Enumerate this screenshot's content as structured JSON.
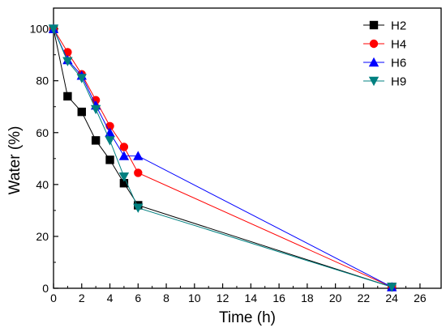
{
  "chart_data": {
    "type": "line",
    "xlabel": "Time (h)",
    "ylabel": "Water (%)",
    "xlim": [
      0,
      27.5
    ],
    "ylim": [
      0,
      108
    ],
    "xticks": [
      0,
      2,
      4,
      6,
      8,
      10,
      12,
      14,
      16,
      18,
      20,
      22,
      24,
      26
    ],
    "yticks": [
      0,
      20,
      40,
      60,
      80,
      100
    ],
    "legend_position": "top-right",
    "grid": false,
    "series": [
      {
        "name": "H2",
        "color": "#000000",
        "marker": "square",
        "points": [
          [
            0,
            100
          ],
          [
            1,
            74
          ],
          [
            2,
            68
          ],
          [
            3,
            57
          ],
          [
            4,
            49.5
          ],
          [
            5,
            40.5
          ],
          [
            6,
            32
          ],
          [
            24,
            0.5
          ]
        ]
      },
      {
        "name": "H4",
        "color": "#ff0000",
        "marker": "circle",
        "points": [
          [
            0,
            100
          ],
          [
            1,
            91
          ],
          [
            2,
            82.5
          ],
          [
            3,
            72.5
          ],
          [
            4,
            62.5
          ],
          [
            5,
            54.5
          ],
          [
            6,
            44.5
          ],
          [
            24,
            0.5
          ]
        ]
      },
      {
        "name": "H6",
        "color": "#0000ff",
        "marker": "triangle-up",
        "points": [
          [
            0,
            100
          ],
          [
            1,
            88
          ],
          [
            2,
            82
          ],
          [
            3,
            70.5
          ],
          [
            4,
            60
          ],
          [
            5,
            51
          ],
          [
            6,
            51
          ],
          [
            24,
            0.5
          ]
        ]
      },
      {
        "name": "H9",
        "color": "#008080",
        "marker": "triangle-down",
        "points": [
          [
            0,
            100
          ],
          [
            1,
            87.5
          ],
          [
            2,
            81
          ],
          [
            3,
            69
          ],
          [
            4,
            57
          ],
          [
            5,
            43
          ],
          [
            6,
            31
          ],
          [
            24,
            0.5
          ]
        ]
      }
    ]
  }
}
